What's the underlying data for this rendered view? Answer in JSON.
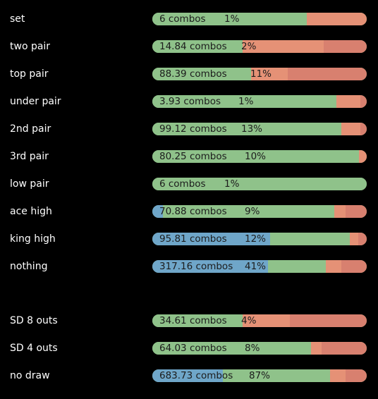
{
  "colors": {
    "background": "#000000",
    "label": "#ffffff",
    "value_text": "#1c1c1c",
    "blue": "#6fa6c9",
    "green": "#8fc28a",
    "salmon": "#e59176",
    "red": "#d8806f"
  },
  "rows": [
    {
      "label": "set",
      "combos": "6 combos",
      "pct": "1%",
      "segments": [
        {
          "color": "green",
          "share": 0.72
        },
        {
          "color": "salmon",
          "share": 0.28
        }
      ]
    },
    {
      "label": "two pair",
      "combos": "14.84 combos",
      "pct": "2%",
      "segments": [
        {
          "color": "green",
          "share": 0.42
        },
        {
          "color": "salmon",
          "share": 0.38
        },
        {
          "color": "red",
          "share": 0.2
        }
      ]
    },
    {
      "label": "top pair",
      "combos": "88.39 combos",
      "pct": "11%",
      "segments": [
        {
          "color": "green",
          "share": 0.46
        },
        {
          "color": "salmon",
          "share": 0.17
        },
        {
          "color": "red",
          "share": 0.37
        }
      ]
    },
    {
      "label": "under pair",
      "combos": "3.93 combos",
      "pct": "1%",
      "segments": [
        {
          "color": "green",
          "share": 0.86
        },
        {
          "color": "salmon",
          "share": 0.11
        },
        {
          "color": "red",
          "share": 0.03
        }
      ]
    },
    {
      "label": "2nd pair",
      "combos": "99.12 combos",
      "pct": "13%",
      "segments": [
        {
          "color": "green",
          "share": 0.88
        },
        {
          "color": "salmon",
          "share": 0.09
        },
        {
          "color": "red",
          "share": 0.03
        }
      ]
    },
    {
      "label": "3rd pair",
      "combos": "80.25 combos",
      "pct": "10%",
      "segments": [
        {
          "color": "green",
          "share": 0.965
        },
        {
          "color": "salmon",
          "share": 0.035
        }
      ]
    },
    {
      "label": "low pair",
      "combos": "6 combos",
      "pct": "1%",
      "segments": [
        {
          "color": "green",
          "share": 1.0
        }
      ]
    },
    {
      "label": "ace high",
      "combos": "70.88 combos",
      "pct": "9%",
      "segments": [
        {
          "color": "blue",
          "share": 0.05
        },
        {
          "color": "green",
          "share": 0.8
        },
        {
          "color": "salmon",
          "share": 0.05
        },
        {
          "color": "red",
          "share": 0.1
        }
      ]
    },
    {
      "label": "king high",
      "combos": "95.81 combos",
      "pct": "12%",
      "segments": [
        {
          "color": "blue",
          "share": 0.55
        },
        {
          "color": "green",
          "share": 0.37
        },
        {
          "color": "salmon",
          "share": 0.04
        },
        {
          "color": "red",
          "share": 0.04
        }
      ]
    },
    {
      "label": "nothing",
      "combos": "317.16 combos",
      "pct": "41%",
      "segments": [
        {
          "color": "blue",
          "share": 0.54
        },
        {
          "color": "green",
          "share": 0.27
        },
        {
          "color": "salmon",
          "share": 0.07
        },
        {
          "color": "red",
          "share": 0.12
        }
      ]
    },
    {
      "label": "SD 8 outs",
      "combos": "34.61 combos",
      "pct": "4%",
      "segments": [
        {
          "color": "green",
          "share": 0.42
        },
        {
          "color": "salmon",
          "share": 0.22
        },
        {
          "color": "red",
          "share": 0.36
        }
      ]
    },
    {
      "label": "SD 4 outs",
      "combos": "64.03 combos",
      "pct": "8%",
      "segments": [
        {
          "color": "green",
          "share": 0.74
        },
        {
          "color": "salmon",
          "share": 0.05
        },
        {
          "color": "red",
          "share": 0.21
        }
      ]
    },
    {
      "label": "no draw",
      "combos": "683.73 combos",
      "pct": "87%",
      "segments": [
        {
          "color": "blue",
          "share": 0.33
        },
        {
          "color": "green",
          "share": 0.5
        },
        {
          "color": "salmon",
          "share": 0.07
        },
        {
          "color": "red",
          "share": 0.1
        }
      ]
    }
  ]
}
